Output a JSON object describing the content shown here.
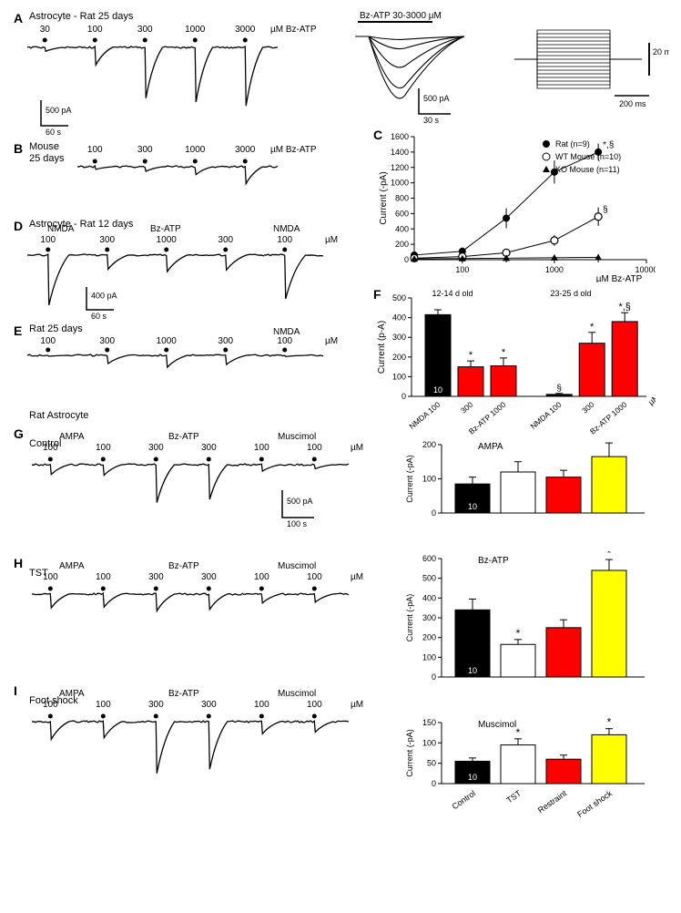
{
  "panelA": {
    "label": "A",
    "title": "Astrocyte - Rat 25 days",
    "concs": [
      "30",
      "100",
      "300",
      "1000",
      "3000"
    ],
    "unit": "µM Bz-ATP",
    "peaks": [
      40,
      180,
      520,
      560,
      600
    ],
    "scale_v": "500 pA",
    "scale_h": "60 s",
    "overlay_title": "Bz-ATP 30-3000 µM",
    "overlay_peaks": [
      30,
      120,
      300,
      500,
      600
    ],
    "overlay_scale_v": "500 pA",
    "overlay_scale_h": "30 s",
    "steps_scale_v": "20 mV",
    "steps_scale_h": "200 ms",
    "color": "#000000"
  },
  "panelB": {
    "label": "B",
    "title": "Mouse 25 days",
    "concs": [
      "100",
      "300",
      "1000",
      "3000"
    ],
    "unit": "µM Bz-ATP",
    "peaks": [
      40,
      70,
      120,
      260
    ],
    "color": "#000000"
  },
  "panelC": {
    "label": "C",
    "ylabel": "Current (-pA)",
    "xlabel": "µM Bz-ATP",
    "ylim": [
      0,
      1600
    ],
    "ytick_step": 200,
    "xticks": [
      30,
      100,
      300,
      1000,
      3000,
      10000
    ],
    "xtick_labels": [
      "",
      "100",
      "",
      "1000",
      "",
      "10000"
    ],
    "series": [
      {
        "name": "Rat (n=9)",
        "marker": "filled-circle",
        "color": "#000000",
        "x": [
          30,
          100,
          300,
          1000,
          3000
        ],
        "y": [
          60,
          110,
          540,
          1140,
          1400
        ],
        "err": [
          30,
          50,
          130,
          150,
          110
        ]
      },
      {
        "name": "WT Mouse (n=10)",
        "marker": "open-circle",
        "color": "#000000",
        "x": [
          30,
          100,
          300,
          1000,
          3000
        ],
        "y": [
          20,
          40,
          90,
          250,
          560
        ],
        "err": [
          15,
          20,
          40,
          70,
          120
        ]
      },
      {
        "name": "KO Mouse (n=11)",
        "marker": "filled-triangle",
        "color": "#000000",
        "x": [
          30,
          100,
          300,
          1000,
          3000
        ],
        "y": [
          10,
          15,
          20,
          25,
          30
        ],
        "err": [
          5,
          5,
          5,
          8,
          8
        ]
      }
    ],
    "annot": "*,§"
  },
  "panelD": {
    "label": "D",
    "title": "Astrocyte - Rat 12 days",
    "topA": "NMDA",
    "topB": "Bz-ATP",
    "topC": "NMDA",
    "concs": [
      "100",
      "300",
      "1000",
      "300",
      "100"
    ],
    "unit": "µM",
    "peaks": [
      640,
      180,
      210,
      190,
      560
    ],
    "scale_v": "400 pA",
    "scale_h": "60 s"
  },
  "panelE": {
    "label": "E",
    "title": "Rat 25 days",
    "topC": "NMDA",
    "concs": [
      "100",
      "300",
      "1000",
      "300",
      "100"
    ],
    "unit": "µM",
    "peaks": [
      20,
      180,
      260,
      200,
      25
    ]
  },
  "panelF": {
    "label": "F",
    "ylabel": "Current (p-A)",
    "ylim": [
      0,
      500
    ],
    "ytick_step": 100,
    "group1": "12-14 d old",
    "group2": "23-25 d old",
    "bars": [
      {
        "label": "NMDA 100",
        "val": 415,
        "err": 25,
        "color": "#000000",
        "n": "10"
      },
      {
        "label": "300",
        "val": 150,
        "err": 30,
        "color": "#ff0000",
        "star": "*"
      },
      {
        "label": "Bz-ATP 1000",
        "val": 155,
        "err": 40,
        "color": "#ff0000",
        "star": "*"
      },
      {
        "label": "NMDA 100",
        "val": 10,
        "err": 5,
        "color": "#000000",
        "n": "11",
        "sect": "§"
      },
      {
        "label": "300",
        "val": 270,
        "err": 55,
        "color": "#ff0000",
        "star": "*"
      },
      {
        "label": "Bz-ATP 1000",
        "val": 380,
        "err": 45,
        "color": "#ff0000",
        "star": "*,§"
      }
    ],
    "unit": "µM"
  },
  "panelG": {
    "label": "G",
    "title": "Rat   Astrocyte",
    "stim": "Control",
    "rows": [
      "AMPA",
      "Bz-ATP",
      "Muscimol"
    ],
    "concs": [
      "100",
      "100",
      "300",
      "300",
      "100",
      "100"
    ],
    "unit": "µM",
    "peaks": [
      120,
      130,
      470,
      430,
      80,
      50
    ],
    "scale_v": "500 pA",
    "scale_h": "100 s"
  },
  "panelH": {
    "label": "H",
    "stim": "TST",
    "rows": [
      "AMPA",
      "Bz-ATP",
      "Muscimol"
    ],
    "concs": [
      "100",
      "100",
      "300",
      "300",
      "100",
      "100"
    ],
    "unit": "µM",
    "peaks": [
      170,
      160,
      210,
      190,
      110,
      100
    ]
  },
  "panelI": {
    "label": "I",
    "stim": "Foot shock",
    "rows": [
      "AMPA",
      "Bz-ATP",
      "Muscimol"
    ],
    "concs": [
      "100",
      "100",
      "300",
      "300",
      "100",
      "100"
    ],
    "unit": "µM",
    "peaks": [
      220,
      200,
      640,
      590,
      150,
      130
    ]
  },
  "barAMPA": {
    "title": "AMPA",
    "ylabel": "Current (-pA)",
    "ylim": [
      0,
      200
    ],
    "ytick_step": 100,
    "bars": [
      {
        "label": "Control",
        "val": 85,
        "err": 20,
        "color": "#000000",
        "n": "10"
      },
      {
        "label": "TST",
        "val": 120,
        "err": 30,
        "color": "#ffffff"
      },
      {
        "label": "Restraint",
        "val": 105,
        "err": 20,
        "color": "#ff0000"
      },
      {
        "label": "Foot shock",
        "val": 165,
        "err": 40,
        "color": "#ffff00"
      }
    ]
  },
  "barBzATP": {
    "title": "Bz-ATP",
    "ylabel": "Current (-pA)",
    "ylim": [
      0,
      600
    ],
    "ytick_step": 100,
    "bars": [
      {
        "label": "Control",
        "val": 340,
        "err": 55,
        "color": "#000000",
        "n": "10"
      },
      {
        "label": "TST",
        "val": 165,
        "err": 25,
        "color": "#ffffff",
        "star": "*"
      },
      {
        "label": "Restraint",
        "val": 250,
        "err": 40,
        "color": "#ff0000"
      },
      {
        "label": "Foot shock",
        "val": 540,
        "err": 55,
        "color": "#ffff00",
        "star": "*"
      }
    ]
  },
  "barMusc": {
    "title": "Muscimol",
    "ylabel": "Current (-pA)",
    "ylim": [
      0,
      150
    ],
    "ytick_step": 50,
    "bars": [
      {
        "label": "Control",
        "val": 55,
        "err": 8,
        "color": "#000000",
        "n": "10"
      },
      {
        "label": "TST",
        "val": 95,
        "err": 15,
        "color": "#ffffff",
        "star": "*"
      },
      {
        "label": "Restraint",
        "val": 60,
        "err": 10,
        "color": "#ff0000"
      },
      {
        "label": "Foot shock",
        "val": 120,
        "err": 15,
        "color": "#ffff00",
        "star": "*"
      }
    ],
    "xlabels": [
      "Control",
      "TST",
      "Restraint",
      "Foot shock"
    ]
  }
}
